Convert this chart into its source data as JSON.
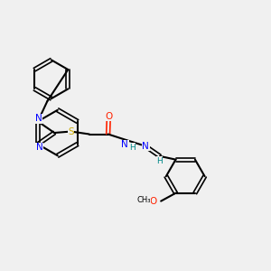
{
  "background_color": "#f0f0f0",
  "bond_color": "#000000",
  "atom_colors": {
    "N": "#0000ff",
    "S": "#ccaa00",
    "O": "#ff2200",
    "C_implicit": "#000000",
    "H": "#008888"
  },
  "title": "",
  "figsize": [
    3.0,
    3.0
  ],
  "dpi": 100
}
